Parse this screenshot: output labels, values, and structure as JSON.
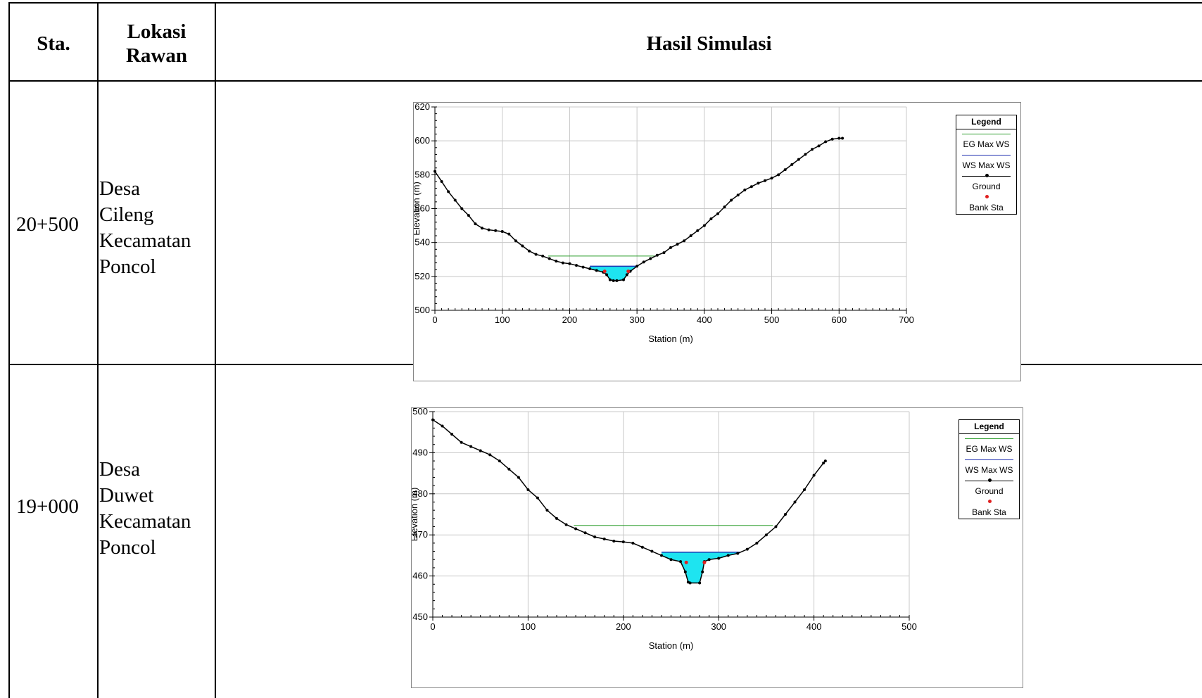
{
  "table": {
    "headers": {
      "sta": "Sta.",
      "lokasi_line1": "Lokasi",
      "lokasi_line2": "Rawan",
      "hasil": "Hasil Simulasi"
    },
    "rows": [
      {
        "sta": "20+500",
        "lokasi": [
          "Desa",
          "Cileng",
          "Kecamatan",
          "Poncol"
        ]
      },
      {
        "sta": "19+000",
        "lokasi": [
          "Desa",
          "Duwet",
          "Kecamatan",
          "Poncol"
        ]
      }
    ]
  },
  "legend": {
    "title": "Legend",
    "items": [
      {
        "label": "EG Max WS",
        "color": "#2a9d2a",
        "style": "line"
      },
      {
        "label": "WS Max WS",
        "color": "#1f2fb0",
        "style": "line"
      },
      {
        "label": "Ground",
        "color": "#000000",
        "style": "line-dot"
      },
      {
        "label": "Bank Sta",
        "color": "#e02020",
        "style": "dot"
      }
    ]
  },
  "colors": {
    "water_fill": "#1ee4f0",
    "grid": "#c8c8c8"
  },
  "chart_data": [
    {
      "type": "line",
      "xlabel": "Station (m)",
      "ylabel": "Elevation (m)",
      "xlim": [
        0,
        700
      ],
      "ylim": [
        500,
        620
      ],
      "xticks": [
        0,
        100,
        200,
        300,
        400,
        500,
        600,
        700
      ],
      "yticks": [
        500,
        520,
        540,
        560,
        580,
        600,
        620
      ],
      "grid": true,
      "legend_position": "right",
      "series": [
        {
          "name": "Ground",
          "x": [
            0,
            10,
            20,
            30,
            40,
            50,
            60,
            70,
            80,
            90,
            100,
            110,
            120,
            130,
            140,
            150,
            160,
            170,
            180,
            190,
            200,
            210,
            220,
            230,
            240,
            250,
            255,
            260,
            265,
            270,
            280,
            285,
            290,
            300,
            310,
            320,
            330,
            340,
            350,
            360,
            370,
            380,
            390,
            400,
            410,
            420,
            430,
            440,
            450,
            460,
            470,
            480,
            490,
            500,
            510,
            520,
            530,
            540,
            550,
            560,
            570,
            580,
            590,
            600,
            605
          ],
          "y": [
            582,
            576,
            570,
            565,
            560,
            556,
            551,
            548.5,
            547.5,
            547,
            546.5,
            545,
            541,
            538,
            535,
            533,
            532,
            530.5,
            529,
            528,
            527.5,
            526.5,
            525.5,
            524.5,
            523.5,
            522.5,
            521,
            518,
            517.5,
            517.5,
            518,
            521,
            523,
            526,
            528.5,
            530.5,
            532.5,
            534,
            537,
            539,
            541,
            544,
            547,
            550,
            554,
            557,
            561,
            565,
            568,
            571,
            573,
            575,
            576.5,
            578,
            580,
            583,
            586,
            589,
            592,
            595,
            597,
            599.5,
            601,
            601.5,
            601.5
          ]
        },
        {
          "name": "EG Max WS",
          "x": [
            168,
            327
          ],
          "y": [
            532,
            532
          ]
        },
        {
          "name": "WS Max WS",
          "x": [
            230,
            300
          ],
          "y": [
            526,
            526
          ]
        },
        {
          "name": "Bank Sta",
          "x": [
            252,
            287
          ],
          "y": [
            523,
            523
          ]
        }
      ]
    },
    {
      "type": "line",
      "xlabel": "Station (m)",
      "ylabel": "Elevation (m)",
      "xlim": [
        0,
        500
      ],
      "ylim": [
        450,
        500
      ],
      "xticks": [
        0,
        100,
        200,
        300,
        400,
        500
      ],
      "yticks": [
        450,
        460,
        470,
        480,
        490,
        500
      ],
      "grid": true,
      "legend_position": "right",
      "series": [
        {
          "name": "Ground",
          "x": [
            0,
            10,
            20,
            30,
            40,
            50,
            60,
            70,
            80,
            90,
            100,
            110,
            120,
            130,
            140,
            150,
            160,
            170,
            180,
            190,
            200,
            210,
            220,
            230,
            240,
            250,
            260,
            265,
            268,
            270,
            280,
            283,
            285,
            290,
            300,
            310,
            320,
            330,
            340,
            350,
            360,
            370,
            380,
            390,
            400,
            410,
            412
          ],
          "y": [
            498,
            496.5,
            494.5,
            492.5,
            491.5,
            490.5,
            489.5,
            488,
            486,
            484,
            481,
            479,
            476,
            474,
            472.5,
            471.5,
            470.5,
            469.5,
            469,
            468.5,
            468.3,
            468,
            467,
            466,
            465,
            464,
            463.5,
            461,
            458.5,
            458.3,
            458.3,
            461,
            463.5,
            464,
            464.3,
            465,
            465.5,
            466.5,
            468,
            470,
            472,
            475,
            478,
            481,
            484.5,
            487.5,
            488
          ]
        },
        {
          "name": "EG Max WS",
          "x": [
            148,
            357
          ],
          "y": [
            472.3,
            472.3
          ]
        },
        {
          "name": "WS Max WS",
          "x": [
            240,
            322
          ],
          "y": [
            465.8,
            465.8
          ]
        },
        {
          "name": "Bank Sta",
          "x": [
            266,
            285
          ],
          "y": [
            463.3,
            463.3
          ]
        }
      ]
    }
  ]
}
